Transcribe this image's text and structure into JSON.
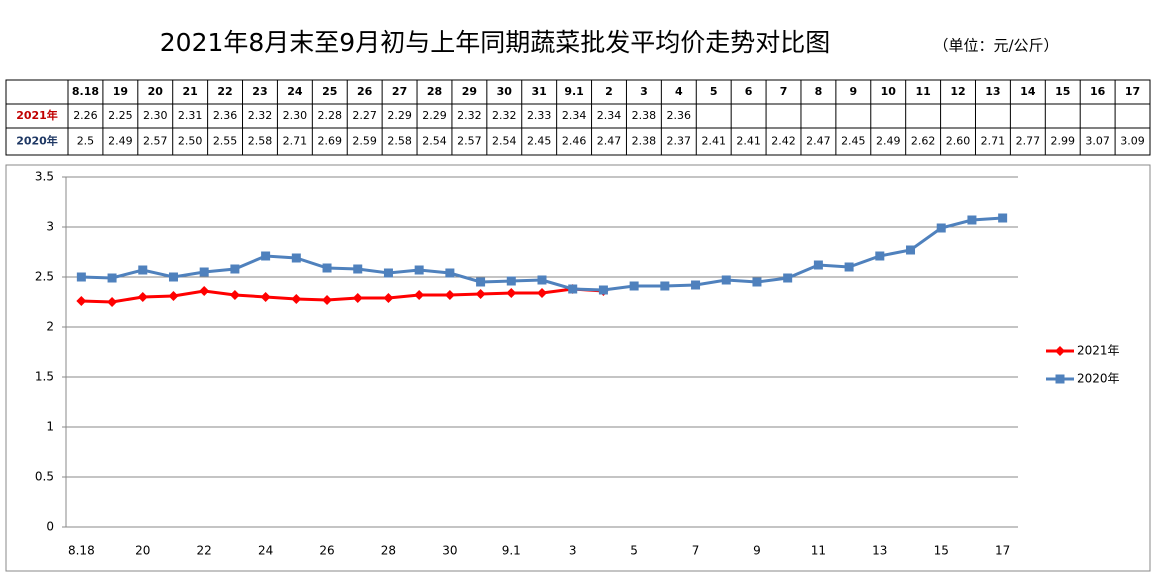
{
  "chart_data": {
    "type": "line",
    "title": "2021年8月末至9月初与上年同期蔬菜批发平均价走势对比图",
    "subtitle": "（单位：元/公斤）",
    "categories": [
      "8.18",
      "19",
      "20",
      "21",
      "22",
      "23",
      "24",
      "25",
      "26",
      "27",
      "28",
      "29",
      "30",
      "31",
      "9.1",
      "2",
      "3",
      "4",
      "5",
      "6",
      "7",
      "8",
      "9",
      "10",
      "11",
      "12",
      "13",
      "14",
      "15",
      "16",
      "17"
    ],
    "series": [
      {
        "name": "2021年",
        "color": "#ff0000",
        "marker": "diamond",
        "values": [
          2.26,
          2.25,
          2.3,
          2.31,
          2.36,
          2.32,
          2.3,
          2.28,
          2.27,
          2.29,
          2.29,
          2.32,
          2.32,
          2.33,
          2.34,
          2.34,
          2.38,
          2.36,
          null,
          null,
          null,
          null,
          null,
          null,
          null,
          null,
          null,
          null,
          null,
          null,
          null
        ],
        "value_labels": [
          "2.26",
          "2.25",
          "2.30",
          "2.31",
          "2.36",
          "2.32",
          "2.30",
          "2.28",
          "2.27",
          "2.29",
          "2.29",
          "2.32",
          "2.32",
          "2.33",
          "2.34",
          "2.34",
          "2.38",
          "2.36",
          null,
          null,
          null,
          null,
          null,
          null,
          null,
          null,
          null,
          null,
          null,
          null,
          null
        ]
      },
      {
        "name": "2020年",
        "color": "#4f81bd",
        "marker": "square",
        "values": [
          2.5,
          2.49,
          2.57,
          2.5,
          2.55,
          2.58,
          2.71,
          2.69,
          2.59,
          2.58,
          2.54,
          2.57,
          2.54,
          2.45,
          2.46,
          2.47,
          2.38,
          2.37,
          2.41,
          2.41,
          2.42,
          2.47,
          2.45,
          2.49,
          2.62,
          2.6,
          2.71,
          2.77,
          2.99,
          3.07,
          3.09
        ],
        "value_labels": [
          "2.5",
          "2.49",
          "2.57",
          "2.50",
          "2.55",
          "2.58",
          "2.71",
          "2.69",
          "2.59",
          "2.58",
          "2.54",
          "2.57",
          "2.54",
          "2.45",
          "2.46",
          "2.47",
          "2.38",
          "2.37",
          "2.41",
          "2.41",
          "2.42",
          "2.47",
          "2.45",
          "2.49",
          "2.62",
          "2.60",
          "2.71",
          "2.77",
          "2.99",
          "3.07",
          "3.09"
        ]
      }
    ],
    "ylim": [
      0,
      3.5
    ],
    "yticks": [
      0,
      0.5,
      1,
      1.5,
      2,
      2.5,
      3,
      3.5
    ],
    "grid": true,
    "legend": "right"
  }
}
